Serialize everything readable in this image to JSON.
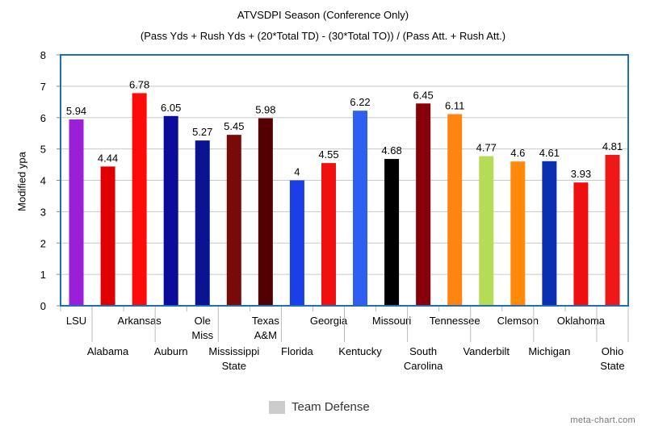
{
  "chart_data": {
    "type": "bar",
    "title": "ATVSDPI Season (Conference Only)",
    "subtitle": "(Pass Yds + Rush Yds + (20*Total TD) - (30*Total TO)) / (Pass Att. + Rush Att.)",
    "ylabel": "Modified ypa",
    "xlabel": "",
    "ylim": [
      0,
      8
    ],
    "yticks": [
      "0",
      "1",
      "2",
      "3",
      "4",
      "5",
      "6",
      "7",
      "8"
    ],
    "grid": true,
    "legend": {
      "position": "bottom-center",
      "entries": [
        {
          "name": "Team Defense",
          "color": "#cccccc"
        }
      ]
    },
    "categories": [
      "LSU",
      "Alabama",
      "Arkansas",
      "Auburn",
      "Ole Miss",
      "Mississippi State",
      "Texas A&M",
      "Florida",
      "Georgia",
      "Kentucky",
      "Missouri",
      "South Carolina",
      "Tennessee",
      "Vanderbilt",
      "Clemson",
      "Michigan",
      "Oklahoma",
      "Ohio State"
    ],
    "category_label_lines": [
      [
        "LSU"
      ],
      [
        "Alabama"
      ],
      [
        "Arkansas"
      ],
      [
        "Auburn"
      ],
      [
        "Ole",
        "Miss"
      ],
      [
        "Mississippi",
        "State"
      ],
      [
        "Texas",
        "A&M"
      ],
      [
        "Florida"
      ],
      [
        "Georgia"
      ],
      [
        "Kentucky"
      ],
      [
        "Missouri"
      ],
      [
        "South",
        "Carolina"
      ],
      [
        "Tennessee"
      ],
      [
        "Vanderbilt"
      ],
      [
        "Clemson"
      ],
      [
        "Michigan"
      ],
      [
        "Oklahoma"
      ],
      [
        "Ohio",
        "State"
      ]
    ],
    "series": [
      {
        "name": "Team Defense",
        "values": [
          5.94,
          4.44,
          6.78,
          6.05,
          5.27,
          5.45,
          5.98,
          4,
          4.55,
          6.22,
          4.68,
          6.45,
          6.11,
          4.77,
          4.6,
          4.61,
          3.93,
          4.81
        ],
        "labels": [
          "5.94",
          "4.44",
          "6.78",
          "6.05",
          "5.27",
          "5.45",
          "5.98",
          "4",
          "4.55",
          "6.22",
          "4.68",
          "6.45",
          "6.11",
          "4.77",
          "4.6",
          "4.61",
          "3.93",
          "4.81"
        ]
      }
    ],
    "bar_colors": [
      "#9b1fd8",
      "#e00000",
      "#ff0a0a",
      "#0c0c9c",
      "#0a1490",
      "#780a0a",
      "#520000",
      "#1a3fe8",
      "#f01010",
      "#2e5ff0",
      "#000000",
      "#880008",
      "#ff8412",
      "#b5dc55",
      "#ff8a0a",
      "#0a2fb0",
      "#ee1010",
      "#ee1818"
    ],
    "frame_color": "#1d6eb8"
  },
  "watermark": "meta-chart.com"
}
